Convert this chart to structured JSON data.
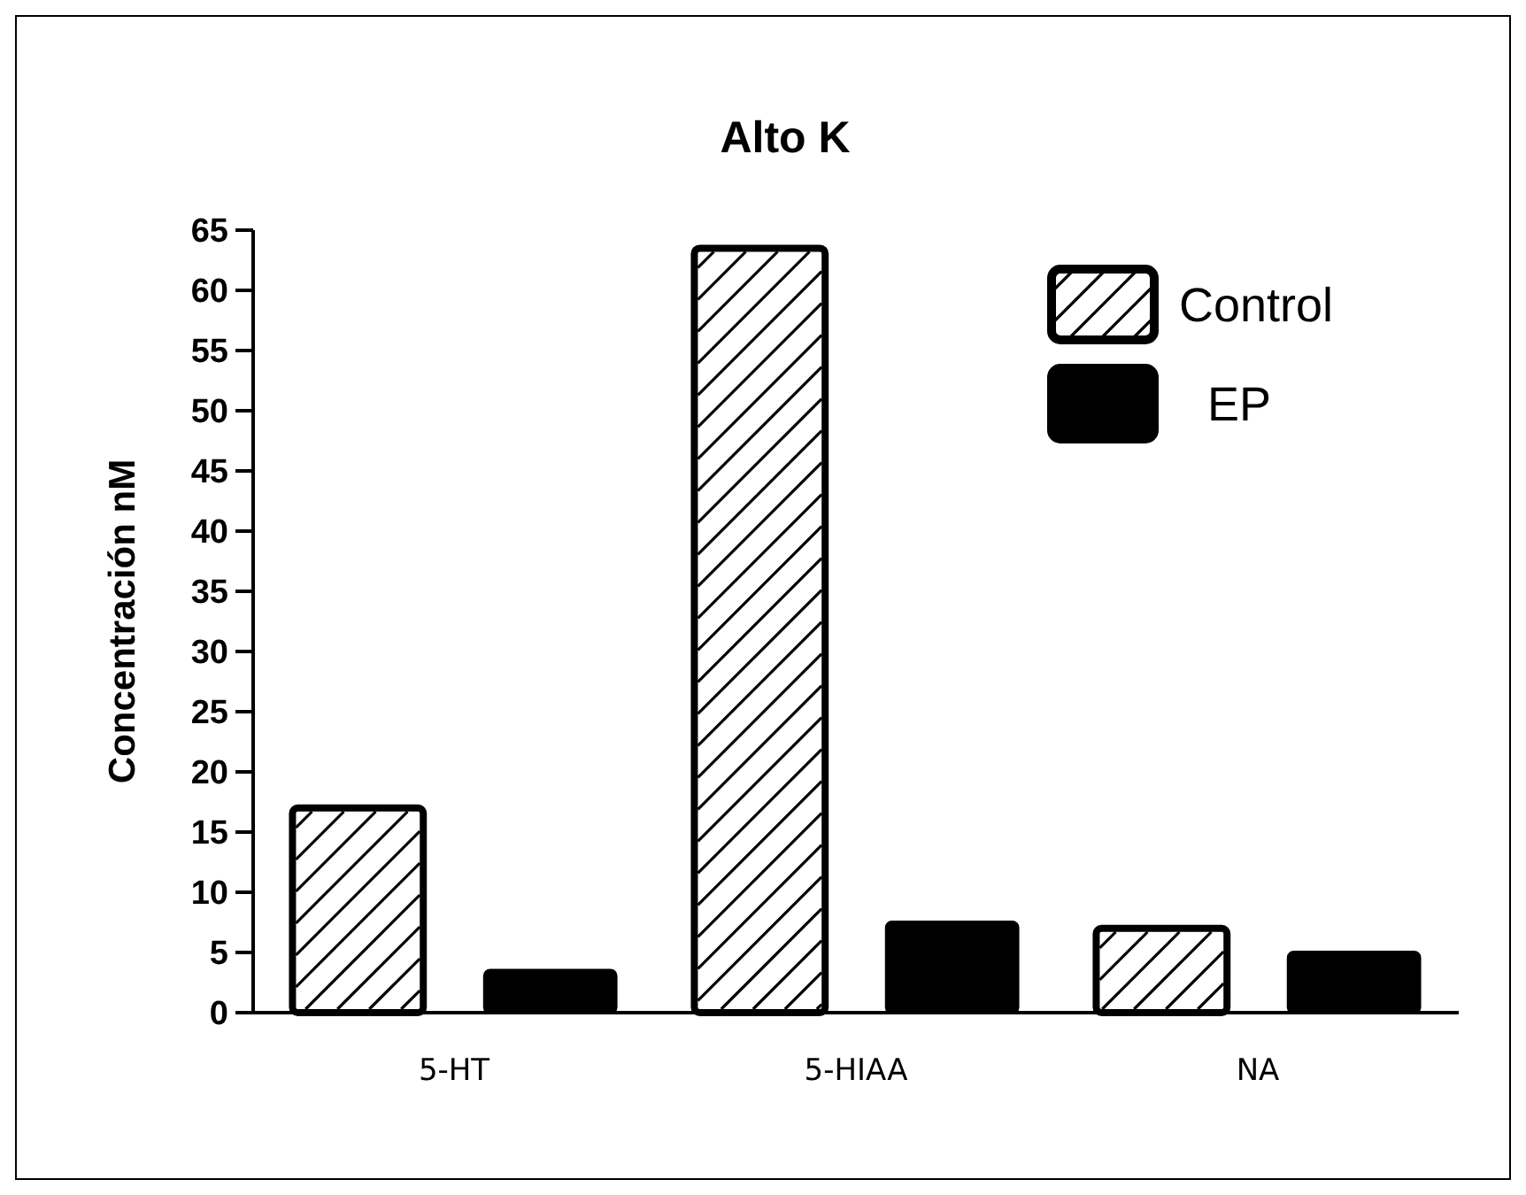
{
  "chart_data": {
    "type": "bar",
    "title": "Alto K",
    "ylabel": "Concentración nM",
    "categories": [
      "5-HT",
      "5-HIAA",
      "NA"
    ],
    "series": [
      {
        "name": "Control",
        "color": "#ffffff",
        "values": [
          17,
          63.5,
          7
        ]
      },
      {
        "name": "EP",
        "color": "#000000",
        "values": [
          3.5,
          7.5,
          5
        ]
      }
    ],
    "ylim": [
      0,
      65
    ],
    "yticks": [
      0,
      5,
      10,
      15,
      20,
      25,
      30,
      35,
      40,
      45,
      50,
      55,
      60,
      65
    ],
    "grid": false,
    "legend": "top right"
  }
}
